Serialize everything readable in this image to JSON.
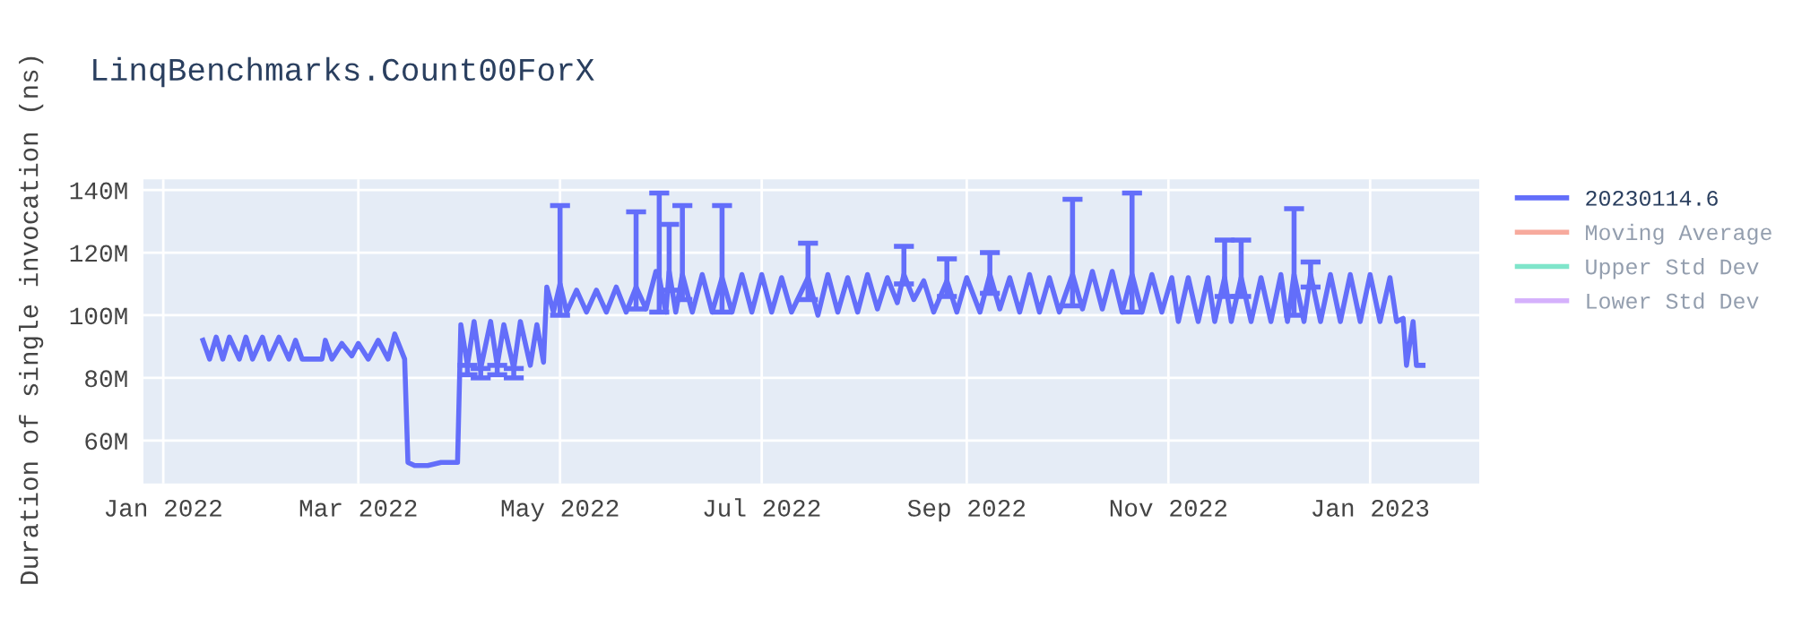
{
  "chart_data": {
    "type": "line",
    "title": "LinqBenchmarks.Count00ForX",
    "ylabel": "Duration of single invocation (ns)",
    "xlim": [
      "2021-12-26",
      "2023-02-03"
    ],
    "xticks": [
      {
        "value": "2022-01-01",
        "label": "Jan 2022"
      },
      {
        "value": "2022-03-01",
        "label": "Mar 2022"
      },
      {
        "value": "2022-05-01",
        "label": "May 2022"
      },
      {
        "value": "2022-07-01",
        "label": "Jul 2022"
      },
      {
        "value": "2022-09-01",
        "label": "Sep 2022"
      },
      {
        "value": "2022-11-01",
        "label": "Nov 2022"
      },
      {
        "value": "2023-01-01",
        "label": "Jan 2023"
      }
    ],
    "ylim": [
      46300000.0,
      143400000.0
    ],
    "yticks": [
      {
        "value": 60000000.0,
        "label": "60M"
      },
      {
        "value": 80000000.0,
        "label": "80M"
      },
      {
        "value": 100000000.0,
        "label": "100M"
      },
      {
        "value": 120000000.0,
        "label": "120M"
      },
      {
        "value": 140000000.0,
        "label": "140M"
      }
    ],
    "grid": true,
    "legend": "top right",
    "marker": "none",
    "line_style": "solid",
    "series": [
      {
        "name": "20230114.6",
        "color": "#636efa",
        "x": [
          "2022-01-13",
          "2022-01-15",
          "2022-01-17",
          "2022-01-19",
          "2022-01-21",
          "2022-01-24",
          "2022-01-26",
          "2022-01-28",
          "2022-01-31",
          "2022-02-02",
          "2022-02-05",
          "2022-02-08",
          "2022-02-10",
          "2022-02-12",
          "2022-02-18",
          "2022-02-19",
          "2022-02-21",
          "2022-02-24",
          "2022-02-27",
          "2022-03-01",
          "2022-03-04",
          "2022-03-07",
          "2022-03-10",
          "2022-03-12",
          "2022-03-15",
          "2022-03-16",
          "2022-03-18",
          "2022-03-22",
          "2022-03-26",
          "2022-03-31",
          "2022-04-01",
          "2022-04-03",
          "2022-04-05",
          "2022-04-07",
          "2022-04-10",
          "2022-04-12",
          "2022-04-14",
          "2022-04-17",
          "2022-04-19",
          "2022-04-22",
          "2022-04-24",
          "2022-04-26",
          "2022-04-27",
          "2022-04-29",
          "2022-05-01",
          "2022-05-03",
          "2022-05-06",
          "2022-05-09",
          "2022-05-12",
          "2022-05-15",
          "2022-05-18",
          "2022-05-21",
          "2022-05-24",
          "2022-05-27",
          "2022-05-30",
          "2022-05-31",
          "2022-06-02",
          "2022-06-03",
          "2022-06-05",
          "2022-06-07",
          "2022-06-10",
          "2022-06-13",
          "2022-06-16",
          "2022-06-19",
          "2022-06-22",
          "2022-06-25",
          "2022-06-28",
          "2022-07-01",
          "2022-07-04",
          "2022-07-07",
          "2022-07-10",
          "2022-07-15",
          "2022-07-18",
          "2022-07-21",
          "2022-07-24",
          "2022-07-27",
          "2022-07-30",
          "2022-08-02",
          "2022-08-05",
          "2022-08-08",
          "2022-08-11",
          "2022-08-13",
          "2022-08-16",
          "2022-08-19",
          "2022-08-22",
          "2022-08-26",
          "2022-08-29",
          "2022-09-01",
          "2022-09-05",
          "2022-09-08",
          "2022-09-11",
          "2022-09-14",
          "2022-09-17",
          "2022-09-20",
          "2022-09-23",
          "2022-09-26",
          "2022-09-29",
          "2022-10-03",
          "2022-10-06",
          "2022-10-09",
          "2022-10-12",
          "2022-10-15",
          "2022-10-18",
          "2022-10-21",
          "2022-10-24",
          "2022-10-27",
          "2022-10-30",
          "2022-11-02",
          "2022-11-04",
          "2022-11-07",
          "2022-11-10",
          "2022-11-13",
          "2022-11-15",
          "2022-11-18",
          "2022-11-20",
          "2022-11-23",
          "2022-11-26",
          "2022-11-29",
          "2022-12-02",
          "2022-12-05",
          "2022-12-07",
          "2022-12-09",
          "2022-12-12",
          "2022-12-14",
          "2022-12-17",
          "2022-12-20",
          "2022-12-23",
          "2022-12-26",
          "2022-12-29",
          "2023-01-01",
          "2023-01-04",
          "2023-01-07",
          "2023-01-09",
          "2023-01-11",
          "2023-01-12",
          "2023-01-14",
          "2023-01-15",
          "2023-01-17"
        ],
        "values": [
          92000000.0,
          86000000.0,
          93000000.0,
          86000000.0,
          93000000.0,
          86000000.0,
          93000000.0,
          86000000.0,
          93000000.0,
          86000000.0,
          93000000.0,
          86000000.0,
          92000000.0,
          86000000.0,
          86000000.0,
          92000000.0,
          86000000.0,
          91000000.0,
          87000000.0,
          91000000.0,
          86000000.0,
          92000000.0,
          86000000.0,
          94000000.0,
          86000000.0,
          53000000.0,
          52000000.0,
          52000000.0,
          53000000.0,
          53000000.0,
          97000000.0,
          84000000.0,
          98000000.0,
          83000000.0,
          98000000.0,
          84000000.0,
          97000000.0,
          83000000.0,
          98000000.0,
          84000000.0,
          97000000.0,
          85000000.0,
          109000000.0,
          101000000.0,
          110000000.0,
          101000000.0,
          108000000.0,
          101000000.0,
          108000000.0,
          101000000.0,
          109000000.0,
          101000000.0,
          109000000.0,
          102000000.0,
          114000000.0,
          112000000.0,
          101000000.0,
          114000000.0,
          101000000.0,
          113000000.0,
          101000000.0,
          113000000.0,
          101000000.0,
          112000000.0,
          101000000.0,
          113000000.0,
          101000000.0,
          113000000.0,
          101000000.0,
          112000000.0,
          101000000.0,
          112000000.0,
          100000000.0,
          113000000.0,
          101000000.0,
          112000000.0,
          101000000.0,
          113000000.0,
          102000000.0,
          112000000.0,
          104000000.0,
          113000000.0,
          105000000.0,
          111000000.0,
          101000000.0,
          111000000.0,
          101000000.0,
          112000000.0,
          101000000.0,
          113000000.0,
          102000000.0,
          112000000.0,
          101000000.0,
          113000000.0,
          101000000.0,
          112000000.0,
          101000000.0,
          113000000.0,
          102000000.0,
          114000000.0,
          102000000.0,
          114000000.0,
          101000000.0,
          113000000.0,
          101000000.0,
          113000000.0,
          101000000.0,
          112000000.0,
          98000000.0,
          112000000.0,
          98000000.0,
          112000000.0,
          98000000.0,
          112000000.0,
          98000000.0,
          112000000.0,
          98000000.0,
          112000000.0,
          98000000.0,
          113000000.0,
          98000000.0,
          113000000.0,
          98000000.0,
          113000000.0,
          98000000.0,
          113000000.0,
          98000000.0,
          113000000.0,
          98000000.0,
          113000000.0,
          98000000.0,
          112000000.0,
          98000000.0,
          99000000.0,
          84000000.0,
          98000000.0,
          84000000.0,
          84000000.0
        ],
        "errors": [
          null,
          null,
          null,
          null,
          null,
          null,
          null,
          null,
          null,
          null,
          null,
          null,
          null,
          null,
          null,
          null,
          null,
          null,
          null,
          null,
          null,
          null,
          null,
          null,
          null,
          null,
          null,
          null,
          null,
          null,
          null,
          [
            81000000.0,
            84000000.0
          ],
          null,
          [
            80000000.0,
            83000000.0
          ],
          null,
          [
            81000000.0,
            84000000.0
          ],
          null,
          [
            80000000.0,
            83000000.0
          ],
          null,
          null,
          null,
          null,
          null,
          null,
          [
            100000000.0,
            135000000.0
          ],
          null,
          null,
          null,
          null,
          null,
          null,
          null,
          [
            102000000.0,
            133000000.0
          ],
          null,
          null,
          [
            101000000.0,
            139000000.0
          ],
          null,
          [
            108000000.0,
            129000000.0
          ],
          null,
          [
            105000000.0,
            135000000.0
          ],
          null,
          null,
          null,
          [
            101000000.0,
            135000000.0
          ],
          null,
          null,
          null,
          null,
          null,
          null,
          null,
          [
            105000000.0,
            123000000.0
          ],
          null,
          null,
          null,
          null,
          null,
          null,
          null,
          null,
          null,
          [
            110000000.0,
            122000000.0
          ],
          null,
          null,
          null,
          [
            106000000.0,
            118000000.0
          ],
          null,
          null,
          null,
          [
            107000000.0,
            120000000.0
          ],
          null,
          null,
          null,
          null,
          null,
          null,
          null,
          [
            103000000.0,
            137000000.0
          ],
          null,
          null,
          null,
          null,
          null,
          [
            101000000.0,
            139000000.0
          ],
          null,
          null,
          null,
          null,
          null,
          null,
          null,
          null,
          null,
          [
            106000000.0,
            124000000.0
          ],
          null,
          [
            106000000.0,
            124000000.0
          ],
          null,
          null,
          null,
          null,
          null,
          [
            100000000.0,
            134000000.0
          ],
          null,
          [
            109000000.0,
            117000000.0
          ],
          null,
          null,
          null,
          null,
          null,
          null,
          null,
          null,
          null,
          null,
          null,
          null,
          null,
          null
        ]
      },
      {
        "name": "Moving Average",
        "color": "#ef553b"
      },
      {
        "name": "Upper Std Dev",
        "color": "#00cc96"
      },
      {
        "name": "Lower Std Dev",
        "color": "#ab63fa"
      }
    ]
  }
}
